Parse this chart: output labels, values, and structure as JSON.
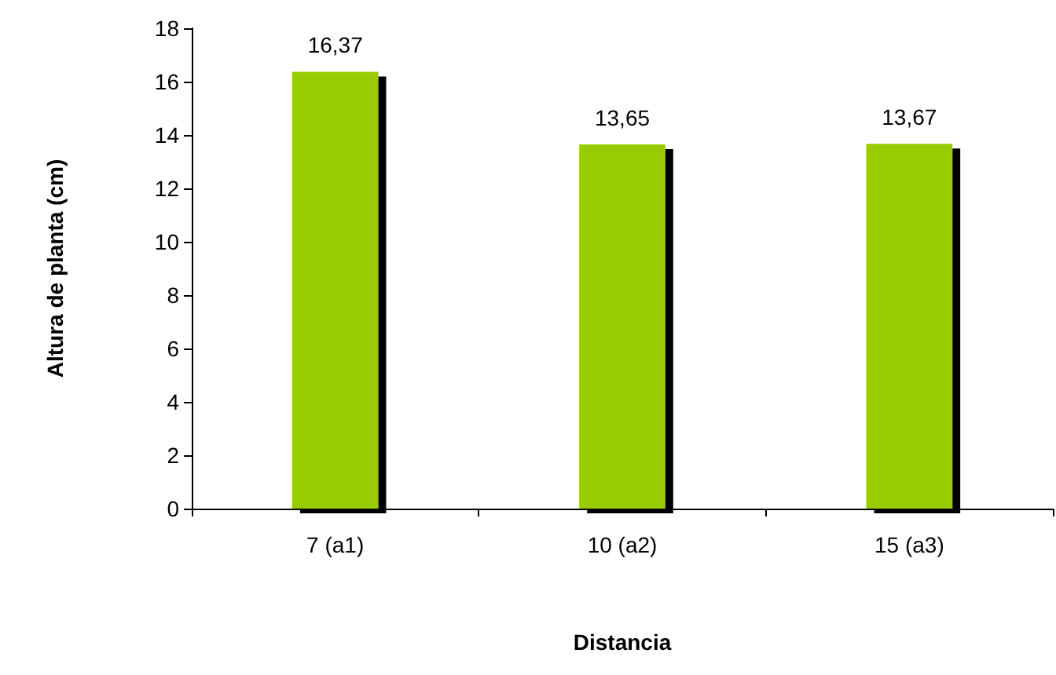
{
  "chart_data": {
    "type": "bar",
    "xlabel": "Distancia",
    "ylabel": "Altura de planta (cm)",
    "categories": [
      "7 (a1)",
      "10 (a2)",
      "15 (a3)"
    ],
    "values": [
      16.37,
      13.65,
      13.67
    ],
    "value_labels": [
      "16,37",
      "13,65",
      "13,67"
    ],
    "color": "#99cc00",
    "ylim": [
      0,
      18
    ],
    "yticks": [
      0,
      2,
      4,
      6,
      8,
      10,
      12,
      14,
      16,
      18
    ],
    "grid": false
  }
}
